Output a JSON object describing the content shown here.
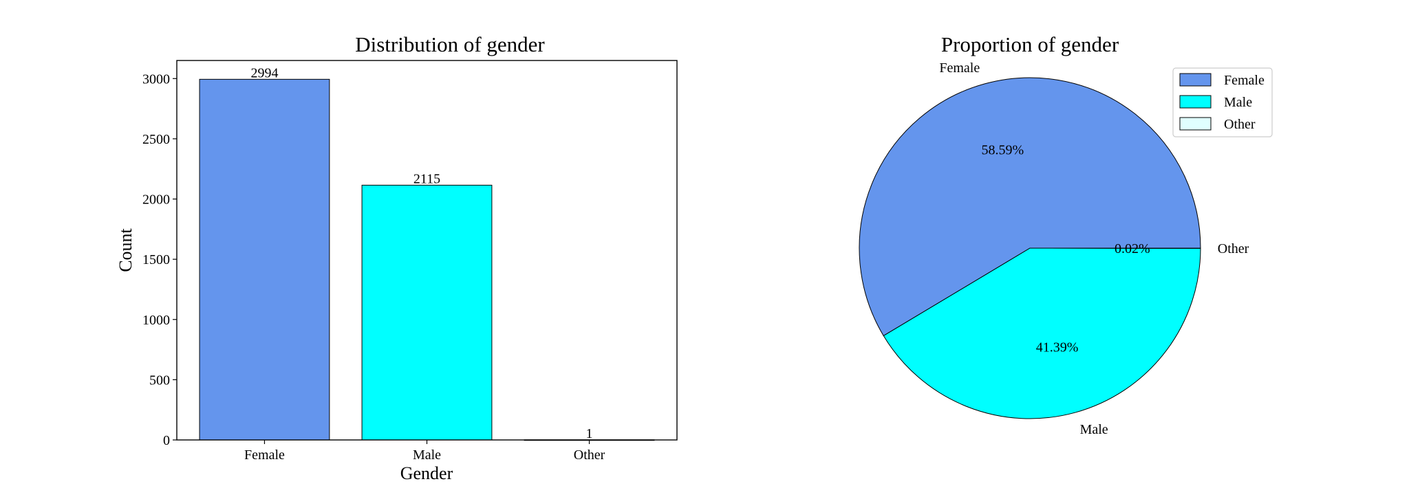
{
  "chart_data": [
    {
      "type": "bar",
      "title": "Distribution of gender",
      "xlabel": "Gender",
      "ylabel": "Count",
      "categories": [
        "Female",
        "Male",
        "Other"
      ],
      "values": [
        2994,
        2115,
        1
      ],
      "colors": [
        "#6495ED",
        "#00FFFF",
        "#E0FFFF"
      ],
      "ylim": [
        0,
        3150
      ],
      "yticks": [
        0,
        500,
        1000,
        1500,
        2000,
        2500,
        3000
      ],
      "grid": false
    },
    {
      "type": "pie",
      "title": "Proportion of gender",
      "labels": [
        "Female",
        "Male",
        "Other"
      ],
      "values": [
        2994,
        2115,
        1
      ],
      "percent_labels": [
        "58.59%",
        "41.39%",
        "0.02%"
      ],
      "colors": [
        "#6495ED",
        "#00FFFF",
        "#E0FFFF"
      ],
      "legend": [
        "Female",
        "Male",
        "Other"
      ],
      "legend_placement": "top-right"
    }
  ]
}
